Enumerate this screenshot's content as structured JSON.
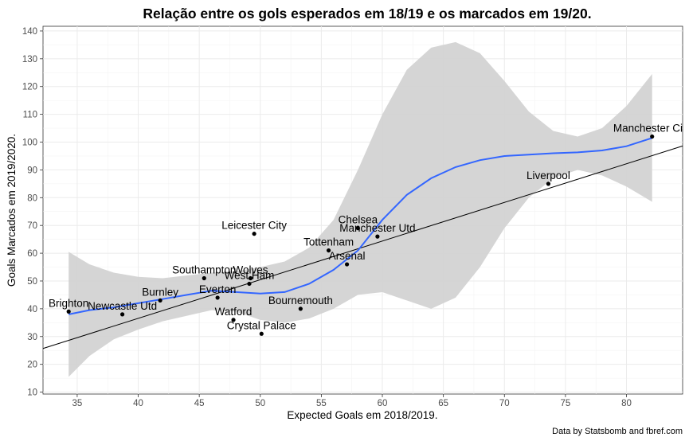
{
  "chart_data": {
    "type": "scatter",
    "title": "Relação entre os gols esperados em 18/19 e os marcados em 19/20.",
    "xlabel": "Expected Goals em 2018/2019.",
    "ylabel": "Goals Marcados em 2019/2020.",
    "caption": "Data by Statsbomb and fbref.com",
    "xlim": [
      32.2,
      84.6
    ],
    "ylim": [
      9.3,
      141.7
    ],
    "x_ticks": [
      35,
      40,
      45,
      50,
      55,
      60,
      65,
      70,
      75,
      80
    ],
    "y_ticks": [
      10,
      20,
      30,
      40,
      50,
      60,
      70,
      80,
      90,
      100,
      110,
      120,
      130,
      140
    ],
    "grid": true,
    "points": [
      {
        "label": "Brighton",
        "x": 34.3,
        "y": 39
      },
      {
        "label": "Newcastle Utd",
        "x": 38.7,
        "y": 38
      },
      {
        "label": "Burnley",
        "x": 41.8,
        "y": 43
      },
      {
        "label": "Southampton",
        "x": 45.4,
        "y": 51
      },
      {
        "label": "Everton",
        "x": 46.5,
        "y": 44
      },
      {
        "label": "Watford",
        "x": 47.8,
        "y": 36
      },
      {
        "label": "Wolves",
        "x": 49.2,
        "y": 51
      },
      {
        "label": "West Ham",
        "x": 49.1,
        "y": 49
      },
      {
        "label": "Leicester City",
        "x": 49.5,
        "y": 67
      },
      {
        "label": "Crystal Palace",
        "x": 50.1,
        "y": 31
      },
      {
        "label": "Bournemouth",
        "x": 53.3,
        "y": 40
      },
      {
        "label": "Tottenham",
        "x": 55.6,
        "y": 61
      },
      {
        "label": "Arsenal",
        "x": 57.1,
        "y": 56
      },
      {
        "label": "Chelsea",
        "x": 58.0,
        "y": 69
      },
      {
        "label": "Manchester Utd",
        "x": 59.6,
        "y": 66
      },
      {
        "label": "Liverpool",
        "x": 73.6,
        "y": 85
      },
      {
        "label": "Manchester City",
        "x": 82.1,
        "y": 102
      }
    ],
    "smooth_line": {
      "color": "#3366ff",
      "x": [
        34.3,
        36,
        38,
        40,
        42,
        44,
        46,
        48,
        50,
        52,
        54,
        56,
        58,
        60,
        62,
        64,
        66,
        68,
        70,
        72,
        74,
        76,
        78,
        80,
        82.1
      ],
      "y": [
        38,
        39.5,
        40.5,
        42,
        43.5,
        45,
        46.5,
        46,
        45.5,
        46,
        49,
        54,
        61,
        72,
        81,
        87,
        91,
        93.5,
        95,
        95.5,
        96,
        96.3,
        97,
        98.5,
        101.5
      ]
    },
    "confidence_band": {
      "color": "#d3d3d3",
      "x": [
        34.3,
        36,
        38,
        40,
        42,
        44,
        46,
        48,
        50,
        52,
        54,
        56,
        58,
        60,
        62,
        64,
        66,
        68,
        70,
        72,
        74,
        76,
        78,
        80,
        82.1
      ],
      "upper": [
        60.5,
        56,
        53,
        51.5,
        51,
        52,
        53,
        53.5,
        55,
        57,
        62,
        72,
        90,
        110,
        126,
        134,
        136,
        132,
        122,
        111,
        104,
        102,
        105,
        113,
        124.5
      ],
      "lower": [
        15.5,
        23,
        29,
        32.5,
        35.5,
        37.5,
        39.5,
        39,
        36,
        35,
        36.5,
        40,
        45,
        46,
        43,
        40,
        44,
        55,
        69,
        80,
        87,
        90,
        88,
        84,
        78.5
      ]
    },
    "reference_line": {
      "color": "#000000",
      "x": [
        32.2,
        84.6
      ],
      "y": [
        25.7,
        98.6
      ]
    }
  }
}
